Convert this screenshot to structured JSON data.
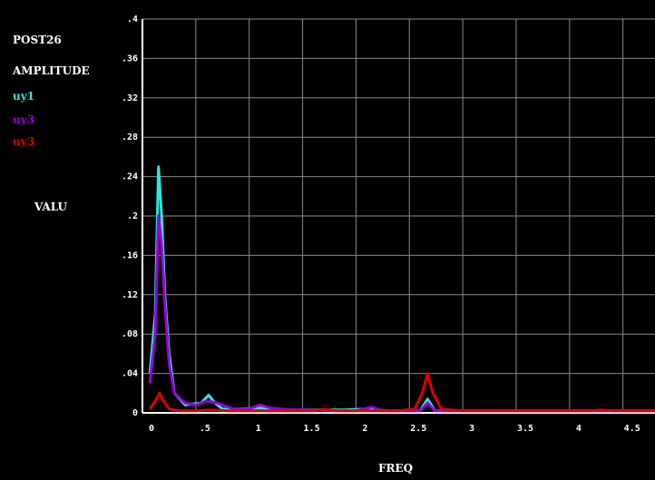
{
  "header": {
    "program": "POST26",
    "quantity": "AMPLITUDE",
    "legend": [
      {
        "label": "uy1",
        "color": "#2ee8e0"
      },
      {
        "label": "uy3",
        "color": "#9a00d8"
      },
      {
        "label": "uy3",
        "color": "#e00000"
      }
    ]
  },
  "colors": {
    "background": "#000000",
    "axes": "#ffffff",
    "grid": "#8a8a8a"
  },
  "chart_data": {
    "type": "line",
    "title": "",
    "xlabel": "FREQ",
    "ylabel": "VALU",
    "xlim": [
      0,
      4.8
    ],
    "ylim": [
      0,
      0.4
    ],
    "grid": true,
    "legend_position": "left",
    "x_ticks": [
      0,
      0.5,
      1,
      1.5,
      2,
      2.5,
      3,
      3.5,
      4,
      4.5
    ],
    "x_tick_labels": [
      "0",
      ".5",
      "1",
      "1.5",
      "2",
      "2.5",
      "3",
      "3.5",
      "4",
      "4.5"
    ],
    "y_ticks": [
      0,
      0.04,
      0.08,
      0.12,
      0.16,
      0.2,
      0.24,
      0.28,
      0.32,
      0.36,
      0.4
    ],
    "y_tick_labels": [
      "0",
      ".04",
      ".08",
      ".12",
      ".16",
      ".2",
      ".24",
      ".28",
      ".32",
      ".36",
      ".4"
    ],
    "series": [
      {
        "name": "uy1",
        "color": "#2ee8e0",
        "x": [
          0.07,
          0.12,
          0.15,
          0.18,
          0.21,
          0.25,
          0.3,
          0.4,
          0.55,
          0.62,
          0.68,
          0.75,
          0.9,
          1.1,
          1.3,
          1.5,
          1.7,
          1.9,
          2.1,
          2.2,
          2.3,
          2.5,
          2.6,
          2.67,
          2.74,
          2.9,
          3.1,
          3.5,
          4.0,
          4.5,
          4.8
        ],
        "y": [
          0.04,
          0.1,
          0.25,
          0.2,
          0.12,
          0.06,
          0.02,
          0.008,
          0.01,
          0.018,
          0.01,
          0.004,
          0.004,
          0.005,
          0.003,
          0.003,
          0.003,
          0.003,
          0.004,
          0.003,
          0.002,
          0.002,
          0.002,
          0.014,
          0.002,
          0.002,
          0.002,
          0.002,
          0.002,
          0.002,
          0.002
        ]
      },
      {
        "name": "uy3",
        "color": "#9a00d8",
        "x": [
          0.07,
          0.12,
          0.15,
          0.18,
          0.21,
          0.25,
          0.3,
          0.4,
          0.5,
          0.6,
          0.7,
          0.85,
          1.0,
          1.1,
          1.2,
          1.4,
          1.6,
          1.8,
          2.0,
          2.15,
          2.25,
          2.5,
          2.6,
          2.67,
          2.74,
          2.9,
          3.2,
          3.6,
          4.0,
          4.4,
          4.8
        ],
        "y": [
          0.03,
          0.08,
          0.2,
          0.17,
          0.11,
          0.05,
          0.02,
          0.01,
          0.008,
          0.012,
          0.01,
          0.004,
          0.004,
          0.008,
          0.005,
          0.003,
          0.003,
          0.002,
          0.002,
          0.006,
          0.002,
          0.002,
          0.002,
          0.01,
          0.002,
          0.002,
          0.002,
          0.002,
          0.002,
          0.002,
          0.002
        ]
      },
      {
        "name": "uy3",
        "color": "#e00000",
        "x": [
          0.07,
          0.12,
          0.16,
          0.2,
          0.25,
          0.35,
          0.5,
          0.65,
          0.8,
          1.0,
          1.3,
          1.6,
          1.7,
          1.8,
          2.0,
          2.2,
          2.4,
          2.55,
          2.62,
          2.67,
          2.72,
          2.8,
          3.0,
          3.4,
          3.8,
          4.2,
          4.3,
          4.4,
          4.8
        ],
        "y": [
          0.004,
          0.012,
          0.02,
          0.012,
          0.004,
          0.002,
          0.002,
          0.003,
          0.002,
          0.002,
          0.002,
          0.002,
          0.004,
          0.002,
          0.002,
          0.002,
          0.002,
          0.004,
          0.02,
          0.04,
          0.02,
          0.004,
          0.002,
          0.002,
          0.002,
          0.002,
          0.003,
          0.002,
          0.002
        ]
      }
    ]
  }
}
